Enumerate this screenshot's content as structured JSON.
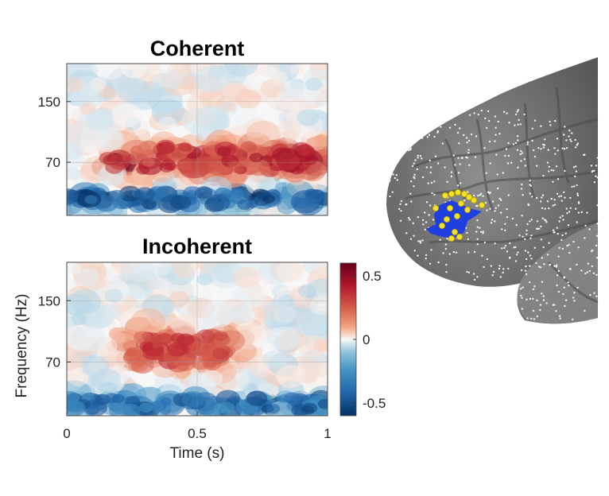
{
  "chart_data": [
    {
      "type": "heatmap",
      "title": "Coherent",
      "xlabel": "",
      "ylabel": "",
      "xlim": [
        0,
        1
      ],
      "ylim": [
        0,
        200
      ],
      "yticks": [
        70,
        150
      ],
      "show_xticks": false,
      "grid": true,
      "bands": [
        {
          "freq_center": 75,
          "freq_width": 22,
          "amplitude": 0.45,
          "sign": "positive",
          "t_start": 0.25,
          "t_end": 0.95
        },
        {
          "freq_center": 70,
          "freq_width": 10,
          "amplitude": 0.55,
          "sign": "positive",
          "t_center": 0.18
        },
        {
          "freq_center": 70,
          "freq_width": 12,
          "amplitude": 0.6,
          "sign": "positive",
          "t_center": 0.87
        },
        {
          "freq_center": 22,
          "freq_width": 12,
          "amplitude": -0.55,
          "sign": "negative",
          "t_start": 0,
          "t_end": 1
        }
      ]
    },
    {
      "type": "heatmap",
      "title": "Incoherent",
      "xlabel": "Time (s)",
      "ylabel": "Frequency (Hz)",
      "xlim": [
        0,
        1
      ],
      "ylim": [
        0,
        200
      ],
      "yticks": [
        70,
        150
      ],
      "xticks": [
        {
          "value": 0,
          "label": "0"
        },
        {
          "value": 0.5,
          "label": "0.5"
        },
        {
          "value": 1,
          "label": "1"
        }
      ],
      "grid": true,
      "bands": [
        {
          "freq_center": 85,
          "freq_width": 28,
          "amplitude": 0.4,
          "sign": "positive",
          "t_start": 0.25,
          "t_end": 0.62
        },
        {
          "freq_center": 15,
          "freq_width": 12,
          "amplitude": -0.5,
          "sign": "negative",
          "t_start": 0,
          "t_end": 1
        }
      ]
    }
  ],
  "colorbar": {
    "range": [
      -0.6,
      0.6
    ],
    "ticks": [
      {
        "value": 0.5,
        "label": "0.5"
      },
      {
        "value": 0,
        "label": "0"
      },
      {
        "value": -0.5,
        "label": "-0.5"
      }
    ],
    "colors": {
      "positive": "#67001f",
      "neutral": "#f7f7f7",
      "negative": "#053061"
    }
  },
  "brain": {
    "surface_color": "#7a7a7a",
    "electrode_color": "#ffffff",
    "region_color": "#1f3fe0",
    "highlight_electrode_color": "#f5e12a"
  }
}
